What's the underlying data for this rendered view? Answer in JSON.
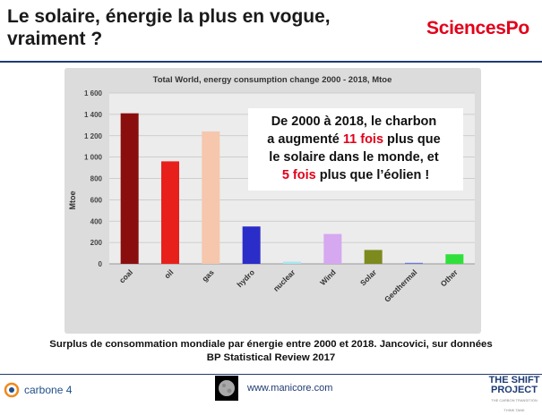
{
  "slide": {
    "title_line1": "Le solaire, énergie la plus en vogue,",
    "title_line2": "vraiment ?",
    "logo_text": "SciencesPo"
  },
  "callout": {
    "line1": "De 2000 à 2018, le charbon",
    "line2_pre": "a augmenté ",
    "line2_highlight": "11 fois",
    "line2_post": " plus que",
    "line3": "le solaire dans le monde, et",
    "line4_highlight": "5 fois",
    "line4_post": " plus que l’éolien !"
  },
  "caption": {
    "line1": "Surplus de consommation mondiale par énergie entre 2000 et 2018. Jancovici, sur données",
    "line2": "BP Statistical Review 2017"
  },
  "footer": {
    "carbone": "carbone 4",
    "website": "www.manicore.com",
    "shift_line1": "THE SHIFT",
    "shift_line2": "PROJECT",
    "shift_tagline": "THE CARBON TRANSITION THINK TANK"
  },
  "colors": {
    "accent_red": "#e2001a",
    "navy": "#1f3b73"
  },
  "chart_data": {
    "type": "bar",
    "title": "Total World, energy consumption change 2000 - 2018, Mtoe",
    "xlabel": "",
    "ylabel": "Mtoe",
    "ylim": [
      0,
      1600
    ],
    "yticks": [
      0,
      200,
      400,
      600,
      800,
      1000,
      1200,
      1400,
      1600
    ],
    "ytick_labels": [
      "0",
      "200",
      "400",
      "600",
      "800",
      "1 000",
      "1 200",
      "1 400",
      "1 600"
    ],
    "grid": true,
    "categories": [
      "coal",
      "oil",
      "gas",
      "hydro",
      "nuclear",
      "Wind",
      "Solar",
      "Geothermal",
      "Other"
    ],
    "values": [
      1410,
      960,
      1240,
      350,
      20,
      280,
      130,
      10,
      90
    ],
    "bar_colors": [
      "#8b0e0e",
      "#e8201c",
      "#f6c7ad",
      "#2b2dc9",
      "#a8e6ee",
      "#d6a8f0",
      "#7c8a1e",
      "#6f7ad6",
      "#2fe03a"
    ]
  }
}
